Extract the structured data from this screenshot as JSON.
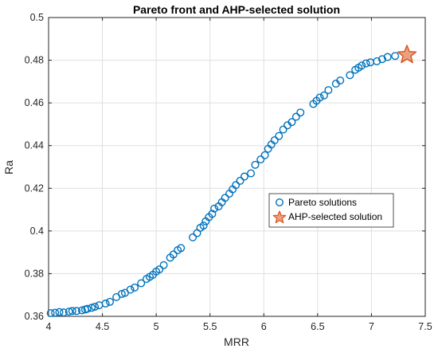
{
  "chart_data": {
    "type": "scatter",
    "title": "Pareto front and AHP-selected solution",
    "xlabel": "MRR",
    "ylabel": "Ra",
    "xlim": [
      4,
      7.5
    ],
    "ylim": [
      0.36,
      0.5
    ],
    "xticks": [
      "4",
      "4.5",
      "5",
      "5.5",
      "6",
      "6.5",
      "7",
      "7.5"
    ],
    "yticks": [
      "0.36",
      "0.38",
      "0.4",
      "0.42",
      "0.44",
      "0.46",
      "0.48",
      "0.5"
    ],
    "grid": true,
    "legend_position": "center-right",
    "series": [
      {
        "name": "Pareto solutions",
        "marker": "circle",
        "color": "#0072BD",
        "points": [
          [
            4.02,
            0.3615
          ],
          [
            4.06,
            0.3617
          ],
          [
            4.1,
            0.362
          ],
          [
            4.14,
            0.3618
          ],
          [
            4.19,
            0.3622
          ],
          [
            4.22,
            0.3625
          ],
          [
            4.26,
            0.3625
          ],
          [
            4.31,
            0.3628
          ],
          [
            4.34,
            0.3632
          ],
          [
            4.36,
            0.3635
          ],
          [
            4.4,
            0.364
          ],
          [
            4.43,
            0.3645
          ],
          [
            4.47,
            0.3652
          ],
          [
            4.53,
            0.366
          ],
          [
            4.57,
            0.3668
          ],
          [
            4.63,
            0.369
          ],
          [
            4.68,
            0.3705
          ],
          [
            4.71,
            0.371
          ],
          [
            4.76,
            0.3725
          ],
          [
            4.8,
            0.3735
          ],
          [
            4.86,
            0.3755
          ],
          [
            4.91,
            0.3775
          ],
          [
            4.94,
            0.3785
          ],
          [
            4.97,
            0.3795
          ],
          [
            5.0,
            0.381
          ],
          [
            5.03,
            0.382
          ],
          [
            5.07,
            0.384
          ],
          [
            5.13,
            0.3875
          ],
          [
            5.16,
            0.389
          ],
          [
            5.2,
            0.391
          ],
          [
            5.23,
            0.392
          ],
          [
            5.34,
            0.397
          ],
          [
            5.38,
            0.399
          ],
          [
            5.41,
            0.4015
          ],
          [
            5.44,
            0.4025
          ],
          [
            5.46,
            0.4045
          ],
          [
            5.49,
            0.4065
          ],
          [
            5.52,
            0.408
          ],
          [
            5.54,
            0.4105
          ],
          [
            5.58,
            0.4115
          ],
          [
            5.61,
            0.4135
          ],
          [
            5.64,
            0.4155
          ],
          [
            5.68,
            0.4175
          ],
          [
            5.71,
            0.4195
          ],
          [
            5.74,
            0.4215
          ],
          [
            5.78,
            0.4235
          ],
          [
            5.82,
            0.4255
          ],
          [
            5.88,
            0.427
          ],
          [
            5.92,
            0.431
          ],
          [
            5.97,
            0.4335
          ],
          [
            6.01,
            0.4355
          ],
          [
            6.04,
            0.4385
          ],
          [
            6.07,
            0.4405
          ],
          [
            6.1,
            0.4425
          ],
          [
            6.14,
            0.4445
          ],
          [
            6.18,
            0.4475
          ],
          [
            6.22,
            0.4495
          ],
          [
            6.26,
            0.451
          ],
          [
            6.3,
            0.4535
          ],
          [
            6.34,
            0.4555
          ],
          [
            6.46,
            0.4595
          ],
          [
            6.49,
            0.461
          ],
          [
            6.52,
            0.4625
          ],
          [
            6.56,
            0.4635
          ],
          [
            6.6,
            0.466
          ],
          [
            6.67,
            0.469
          ],
          [
            6.71,
            0.4705
          ],
          [
            6.8,
            0.473
          ],
          [
            6.85,
            0.4755
          ],
          [
            6.88,
            0.4765
          ],
          [
            6.91,
            0.4775
          ],
          [
            6.95,
            0.4785
          ],
          [
            6.99,
            0.479
          ],
          [
            7.05,
            0.4795
          ],
          [
            7.1,
            0.4805
          ],
          [
            7.15,
            0.4815
          ],
          [
            7.22,
            0.482
          ]
        ]
      },
      {
        "name": "AHP-selected solution",
        "marker": "star",
        "color": "#D95319",
        "points": [
          [
            7.33,
            0.4825
          ]
        ]
      }
    ]
  }
}
